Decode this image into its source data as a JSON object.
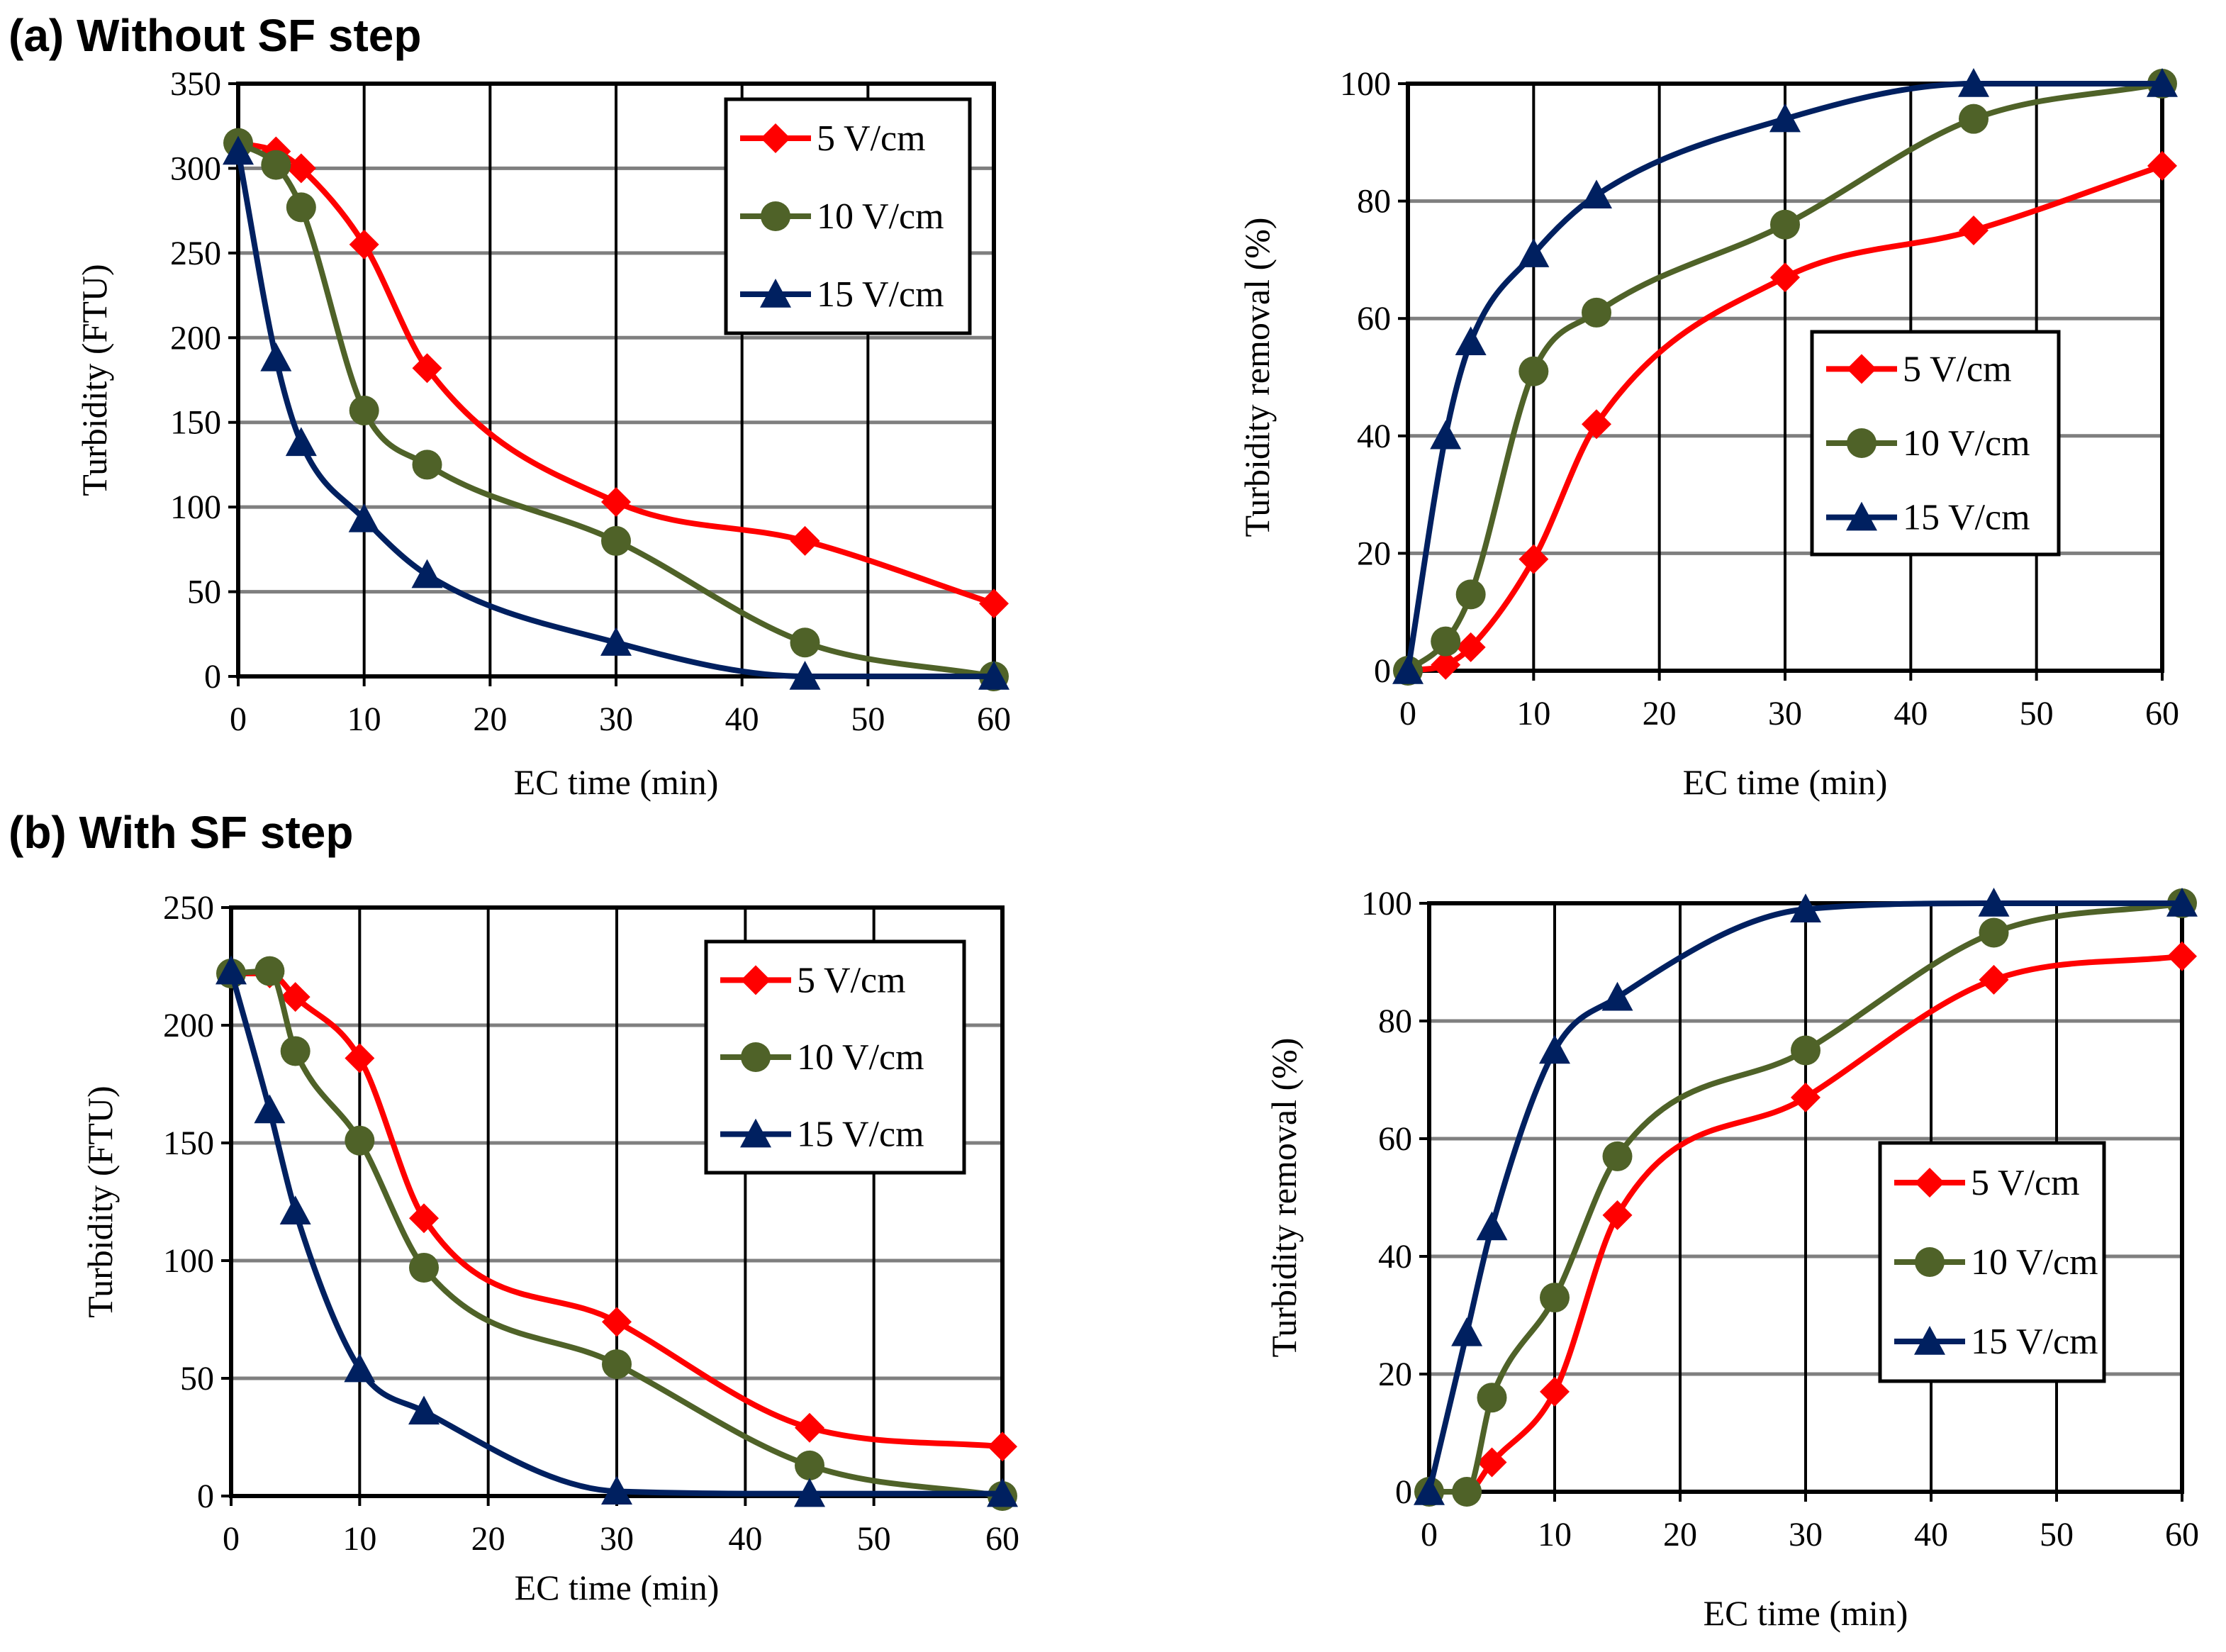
{
  "panels": [
    {
      "label": "(a) Without SF step"
    },
    {
      "label": "(b) With SF step"
    }
  ],
  "colors": {
    "5 V/cm": "#FF0000",
    "10 V/cm": "#4F6228",
    "15 V/cm": "#002060",
    "grid": "#7f7f7f",
    "axis": "#000000"
  },
  "chart_data": [
    {
      "type": "line",
      "panel": "(a) Without SF step",
      "title": "",
      "xlabel": "EC time (min)",
      "ylabel": "Turbidity (FTU)",
      "xlim": [
        0,
        60
      ],
      "ylim": [
        0,
        350
      ],
      "xticks": [
        0,
        10,
        20,
        30,
        40,
        50,
        60
      ],
      "yticks": [
        0,
        50,
        100,
        150,
        200,
        250,
        300,
        350
      ],
      "grid": true,
      "legend_position": "top-right",
      "x": [
        0,
        3,
        5,
        10,
        15,
        30,
        45,
        60
      ],
      "series": [
        {
          "name": "5 V/cm",
          "marker": "diamond",
          "values": [
            315,
            310,
            300,
            255,
            182,
            103,
            80,
            43
          ]
        },
        {
          "name": "10 V/cm",
          "marker": "circle",
          "values": [
            315,
            302,
            277,
            157,
            125,
            80,
            20,
            0
          ]
        },
        {
          "name": "15 V/cm",
          "marker": "triangle",
          "values": [
            310,
            188,
            138,
            93,
            60,
            20,
            0,
            0
          ]
        }
      ]
    },
    {
      "type": "line",
      "panel": "(a) Without SF step",
      "title": "",
      "xlabel": "EC time (min)",
      "ylabel": "Turbidity removal (%)",
      "xlim": [
        0,
        60
      ],
      "ylim": [
        0,
        100
      ],
      "xticks": [
        0,
        10,
        20,
        30,
        40,
        50,
        60
      ],
      "yticks": [
        0,
        20,
        40,
        60,
        80,
        100
      ],
      "grid": true,
      "legend_position": "center-right",
      "x": [
        0,
        3,
        5,
        10,
        15,
        30,
        45,
        60
      ],
      "series": [
        {
          "name": "5 V/cm",
          "marker": "diamond",
          "values": [
            0,
            1,
            4,
            19,
            42,
            67,
            75,
            86
          ]
        },
        {
          "name": "10 V/cm",
          "marker": "circle",
          "values": [
            0,
            5,
            13,
            51,
            61,
            76,
            94,
            100
          ]
        },
        {
          "name": "15 V/cm",
          "marker": "triangle",
          "values": [
            0,
            40,
            56,
            71,
            81,
            94,
            100,
            100
          ]
        }
      ]
    },
    {
      "type": "line",
      "panel": "(b) With SF step",
      "title": "",
      "xlabel": "EC time (min)",
      "ylabel": "Turbidity (FTU)",
      "xlim": [
        0,
        60
      ],
      "ylim": [
        0,
        250
      ],
      "xticks": [
        0,
        10,
        20,
        30,
        40,
        50,
        60
      ],
      "yticks": [
        0,
        50,
        100,
        150,
        200,
        250
      ],
      "grid": true,
      "legend_position": "top-right",
      "x": [
        0,
        3,
        5,
        10,
        15,
        30,
        45,
        60
      ],
      "series": [
        {
          "name": "5 V/cm",
          "marker": "diamond",
          "values": [
            222,
            222,
            212,
            186,
            118,
            74,
            29,
            21
          ]
        },
        {
          "name": "10 V/cm",
          "marker": "circle",
          "values": [
            222,
            223,
            189,
            151,
            97,
            56,
            13,
            0
          ]
        },
        {
          "name": "15 V/cm",
          "marker": "triangle",
          "values": [
            223,
            164,
            121,
            54,
            36,
            2,
            1,
            1
          ]
        }
      ]
    },
    {
      "type": "line",
      "panel": "(b) With SF step",
      "title": "",
      "xlabel": "EC time (min)",
      "ylabel": "Turbidity removal (%)",
      "xlim": [
        0,
        60
      ],
      "ylim": [
        0,
        100
      ],
      "xticks": [
        0,
        10,
        20,
        30,
        40,
        50,
        60
      ],
      "yticks": [
        0,
        20,
        40,
        60,
        80,
        100
      ],
      "grid": true,
      "legend_position": "bottom-right",
      "x": [
        0,
        3,
        5,
        10,
        15,
        30,
        45,
        60
      ],
      "series": [
        {
          "name": "5 V/cm",
          "marker": "diamond",
          "values": [
            0,
            0,
            5,
            17,
            47,
            67,
            87,
            91
          ]
        },
        {
          "name": "10 V/cm",
          "marker": "circle",
          "values": [
            0,
            0,
            16,
            33,
            57,
            75,
            95,
            100
          ]
        },
        {
          "name": "15 V/cm",
          "marker": "triangle",
          "values": [
            0,
            27,
            45,
            75,
            84,
            99,
            100,
            100
          ]
        }
      ]
    }
  ]
}
